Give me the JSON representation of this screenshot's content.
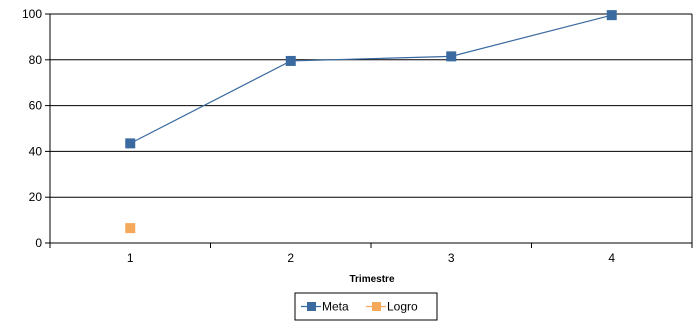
{
  "chart_data": {
    "type": "line",
    "categories": [
      "1",
      "2",
      "3",
      "4"
    ],
    "series": [
      {
        "name": "Meta",
        "values": [
          43.5,
          79.5,
          81.5,
          99.5
        ],
        "color": "#3a6aa0",
        "line": true
      },
      {
        "name": "Logro",
        "values": [
          6.5,
          null,
          null,
          null
        ],
        "color": "#f4a95a",
        "line": true
      }
    ],
    "title": "",
    "xlabel": "Trimestre",
    "ylabel": "",
    "ylim": [
      0,
      100
    ],
    "yticks": [
      0,
      20,
      40,
      60,
      80,
      100
    ],
    "grid": true,
    "legend": "bottom-center"
  }
}
